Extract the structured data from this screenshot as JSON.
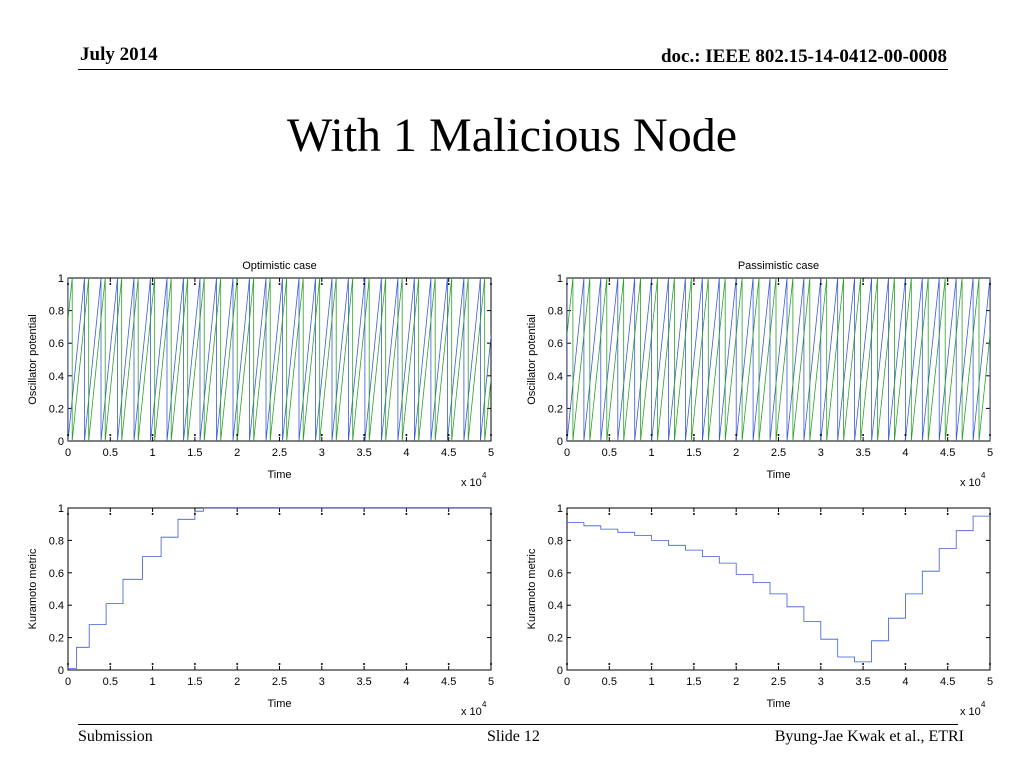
{
  "header": {
    "date": "July 2014",
    "doc": "doc.: IEEE 802.15-14-0412-00-0008"
  },
  "slide": {
    "title": "With 1 Malicious Node"
  },
  "footer": {
    "left": "Submission",
    "center": "Slide 12",
    "right": "Byung-Jae Kwak et al., ETRI"
  },
  "colors": {
    "series_blue": "#3b5bdb",
    "series_green": "#2ca02c",
    "axis": "#000000"
  },
  "chart_data": [
    {
      "type": "line",
      "title": "Optimistic case",
      "xlabel": "Time",
      "ylabel": "Oscillator potential",
      "xlim": [
        0,
        50000
      ],
      "ylim": [
        0,
        1
      ],
      "x_ticks": [
        "0",
        "0.5",
        "1",
        "1.5",
        "2",
        "2.5",
        "3",
        "3.5",
        "4",
        "4.5",
        "5"
      ],
      "y_ticks": [
        "0",
        "0.2",
        "0.4",
        "0.6",
        "0.8",
        "1"
      ],
      "x_multiplier": "x 10",
      "x_exponent": "4",
      "series": [
        {
          "color": "#3b5bdb",
          "shape": "sawtooth",
          "period": 1950,
          "phase": 0
        },
        {
          "color": "#2ca02c",
          "shape": "sawtooth",
          "period": 1950,
          "phase": 500
        }
      ]
    },
    {
      "type": "line",
      "title": "Passimistic case",
      "xlabel": "Time",
      "ylabel": "Oscillator potential",
      "xlim": [
        0,
        50000
      ],
      "ylim": [
        0,
        1
      ],
      "x_ticks": [
        "0",
        "0.5",
        "1",
        "1.5",
        "2",
        "2.5",
        "3",
        "3.5",
        "4",
        "4.5",
        "5"
      ],
      "y_ticks": [
        "0",
        "0.2",
        "0.4",
        "0.6",
        "0.8",
        "1"
      ],
      "x_multiplier": "x 10",
      "x_exponent": "4",
      "series": [
        {
          "color": "#3b5bdb",
          "shape": "sawtooth",
          "period": 2000,
          "phase": 0
        },
        {
          "color": "#2ca02c",
          "shape": "sawtooth",
          "period": 2000,
          "phase": 700
        }
      ]
    },
    {
      "type": "line",
      "step": true,
      "xlabel": "Time",
      "ylabel": "Kuramoto metric",
      "xlim": [
        0,
        50000
      ],
      "ylim": [
        0,
        1
      ],
      "x_ticks": [
        "0",
        "0.5",
        "1",
        "1.5",
        "2",
        "2.5",
        "3",
        "3.5",
        "4",
        "4.5",
        "5"
      ],
      "y_ticks": [
        "0",
        "0.2",
        "0.4",
        "0.6",
        "0.8",
        "1"
      ],
      "x_multiplier": "x 10",
      "x_exponent": "4",
      "series": [
        {
          "color": "#3b5bdb",
          "x": [
            0,
            1000,
            2500,
            4500,
            6500,
            8800,
            11000,
            13000,
            15000,
            16000,
            50000
          ],
          "y": [
            0.01,
            0.14,
            0.28,
            0.41,
            0.56,
            0.7,
            0.82,
            0.93,
            0.98,
            1.0,
            1.0
          ]
        }
      ]
    },
    {
      "type": "line",
      "step": true,
      "xlabel": "Time",
      "ylabel": "Kuramoto metric",
      "xlim": [
        0,
        50000
      ],
      "ylim": [
        0,
        1
      ],
      "x_ticks": [
        "0",
        "0.5",
        "1",
        "1.5",
        "2",
        "2.5",
        "3",
        "3.5",
        "4",
        "4.5",
        "5"
      ],
      "y_ticks": [
        "0",
        "0.2",
        "0.4",
        "0.6",
        "0.8",
        "1"
      ],
      "x_multiplier": "x 10",
      "x_exponent": "4",
      "series": [
        {
          "color": "#3b5bdb",
          "x": [
            0,
            2000,
            4000,
            6000,
            8000,
            10000,
            12000,
            14000,
            16000,
            18000,
            20000,
            22000,
            24000,
            26000,
            28000,
            30000,
            32000,
            34000,
            36000,
            38000,
            40000,
            42000,
            44000,
            46000,
            48000,
            50000
          ],
          "y": [
            0.91,
            0.89,
            0.87,
            0.85,
            0.83,
            0.8,
            0.77,
            0.74,
            0.7,
            0.66,
            0.59,
            0.54,
            0.47,
            0.39,
            0.3,
            0.19,
            0.08,
            0.05,
            0.18,
            0.32,
            0.47,
            0.61,
            0.75,
            0.86,
            0.95,
            0.99
          ]
        }
      ]
    }
  ]
}
